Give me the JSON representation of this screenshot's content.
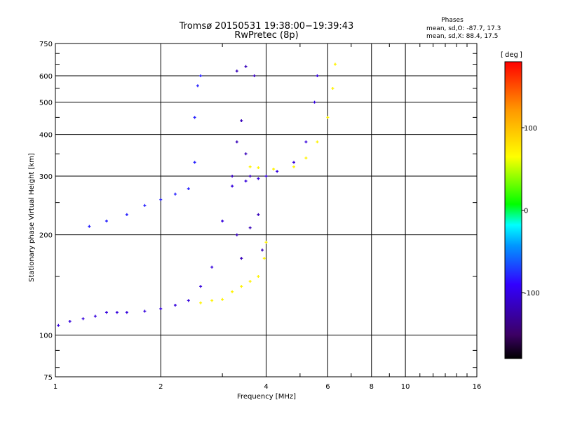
{
  "chart_data": {
    "type": "scatter",
    "title": "Tromsø 20150531 19:38:00−19:39:43",
    "subtitle": "RwPretec (8p)",
    "xlabel": "Frequency [MHz]",
    "ylabel": "Stationary phase Virtual Height [km]",
    "x_scale": "log",
    "y_scale": "log",
    "xlim": [
      1,
      16
    ],
    "ylim": [
      75,
      750
    ],
    "x_ticks": [
      1,
      2,
      4,
      6,
      8,
      10,
      16
    ],
    "x_tick_labels": [
      "1",
      "2",
      "4",
      "6",
      "8",
      "10",
      "16"
    ],
    "y_ticks": [
      75,
      100,
      200,
      300,
      400,
      500,
      600,
      750
    ],
    "y_tick_labels": [
      "75",
      "100",
      "200",
      "300",
      "400",
      "500",
      "600",
      "750"
    ],
    "grid": true,
    "phase_header": "Phases",
    "phase_stats": [
      "mean, sd,O: -87.7, 17.3",
      "mean, sd,X: 88.4, 17.5"
    ],
    "colorbar": {
      "unit": "deg",
      "range": [
        -180,
        180
      ],
      "ticks": [
        100,
        0,
        -100
      ],
      "tick_labels": [
        "100",
        "0",
        "-100"
      ],
      "colors": [
        "#000000",
        "#3c0064",
        "#3200ff",
        "#0096ff",
        "#00ffff",
        "#00ff00",
        "#ffff00",
        "#ff9600",
        "#ff0000"
      ]
    },
    "series": [
      {
        "phase_deg": -100,
        "points": [
          [
            1.02,
            107
          ],
          [
            1.1,
            110
          ],
          [
            1.2,
            112
          ],
          [
            1.3,
            114
          ],
          [
            1.4,
            117
          ],
          [
            1.5,
            117
          ],
          [
            1.6,
            117
          ],
          [
            1.8,
            118
          ],
          [
            2.0,
            120
          ],
          [
            2.2,
            123
          ],
          [
            2.4,
            127
          ],
          [
            2.6,
            140
          ],
          [
            2.8,
            160
          ],
          [
            3.0,
            220
          ],
          [
            3.2,
            280
          ],
          [
            3.5,
            290
          ],
          [
            3.8,
            295
          ],
          [
            4.0,
            300
          ],
          [
            4.3,
            310
          ],
          [
            4.8,
            330
          ],
          [
            5.2,
            380
          ],
          [
            5.5,
            500
          ],
          [
            5.6,
            600
          ]
        ]
      },
      {
        "phase_deg": -80,
        "points": [
          [
            1.25,
            212
          ],
          [
            1.4,
            220
          ],
          [
            1.6,
            230
          ],
          [
            1.8,
            245
          ],
          [
            2.0,
            255
          ],
          [
            2.2,
            265
          ],
          [
            2.4,
            275
          ],
          [
            2.5,
            330
          ],
          [
            2.5,
            450
          ],
          [
            2.55,
            560
          ],
          [
            2.6,
            600
          ]
        ]
      },
      {
        "phase_deg": -110,
        "points": [
          [
            3.2,
            300
          ],
          [
            3.3,
            380
          ],
          [
            3.4,
            440
          ],
          [
            3.5,
            350
          ],
          [
            3.6,
            300
          ],
          [
            3.3,
            200
          ],
          [
            3.4,
            170
          ],
          [
            3.6,
            210
          ],
          [
            3.8,
            230
          ],
          [
            3.9,
            180
          ],
          [
            3.3,
            620
          ],
          [
            3.5,
            640
          ],
          [
            3.7,
            600
          ]
        ]
      },
      {
        "phase_deg": 95,
        "points": [
          [
            2.6,
            125
          ],
          [
            2.8,
            127
          ],
          [
            3.0,
            128
          ],
          [
            3.2,
            135
          ],
          [
            3.4,
            140
          ],
          [
            3.6,
            145
          ],
          [
            3.8,
            150
          ],
          [
            3.95,
            170
          ],
          [
            4.0,
            190
          ],
          [
            3.6,
            320
          ],
          [
            3.8,
            318
          ],
          [
            4.2,
            315
          ],
          [
            4.8,
            320
          ],
          [
            5.2,
            340
          ],
          [
            5.6,
            380
          ],
          [
            6.0,
            450
          ],
          [
            6.2,
            550
          ],
          [
            6.3,
            650
          ]
        ]
      }
    ]
  }
}
